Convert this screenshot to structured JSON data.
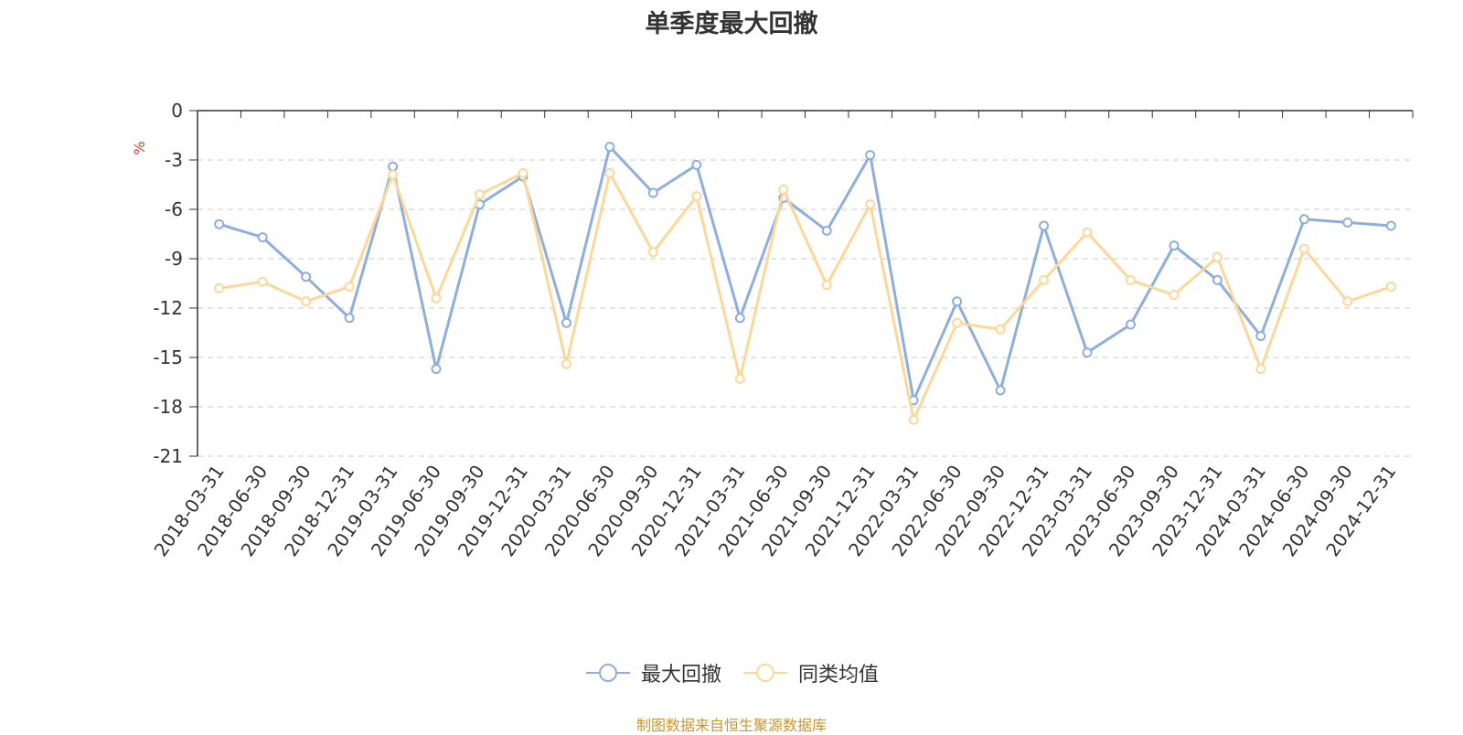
{
  "chart_data": {
    "type": "line",
    "title": "单季度最大回撤",
    "ylabel": "%",
    "xlabel": "",
    "ylim": [
      -21,
      0
    ],
    "yticks": [
      0,
      -3,
      -6,
      -9,
      -12,
      -15,
      -18,
      -21
    ],
    "grid": true,
    "legend_position": "bottom-center",
    "categories": [
      "2018-03-31",
      "2018-06-30",
      "2018-09-30",
      "2018-12-31",
      "2019-03-31",
      "2019-06-30",
      "2019-09-30",
      "2019-12-31",
      "2020-03-31",
      "2020-06-30",
      "2020-09-30",
      "2020-12-31",
      "2021-03-31",
      "2021-06-30",
      "2021-09-30",
      "2021-12-31",
      "2022-03-31",
      "2022-06-30",
      "2022-09-30",
      "2022-12-31",
      "2023-03-31",
      "2023-06-30",
      "2023-09-30",
      "2023-12-31",
      "2024-03-31",
      "2024-06-30",
      "2024-09-30",
      "2024-12-31"
    ],
    "series": [
      {
        "name": "最大回撤",
        "color": "#8eaedb",
        "values": [
          -6.9,
          -7.7,
          -10.1,
          -12.6,
          -3.4,
          -15.7,
          -5.7,
          -4.0,
          -12.9,
          -2.2,
          -5.0,
          -3.3,
          -12.6,
          -5.3,
          -7.3,
          -2.7,
          -17.6,
          -11.6,
          -17.0,
          -7.0,
          -14.7,
          -13.0,
          -8.2,
          -10.3,
          -13.7,
          -6.6,
          -6.8,
          -7.0
        ]
      },
      {
        "name": "同类均值",
        "color": "#fbd89a",
        "values": [
          -10.8,
          -10.4,
          -11.6,
          -10.7,
          -3.9,
          -11.4,
          -5.1,
          -3.8,
          -15.4,
          -3.8,
          -8.6,
          -5.2,
          -16.3,
          -4.8,
          -10.6,
          -5.7,
          -18.8,
          -12.9,
          -13.3,
          -10.3,
          -7.4,
          -10.3,
          -11.2,
          -8.9,
          -15.7,
          -8.4,
          -11.6,
          -10.7
        ]
      }
    ]
  },
  "source_note": "制图数据来自恒生聚源数据库"
}
